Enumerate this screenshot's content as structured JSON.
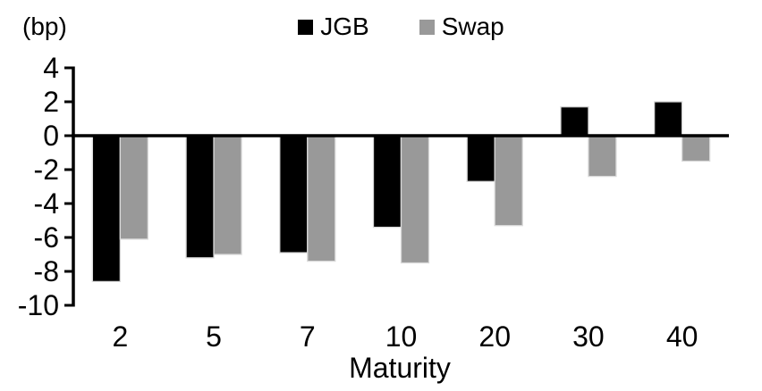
{
  "chart_data": {
    "type": "bar",
    "title": "",
    "unit_label": "(bp)",
    "xlabel": "Maturity",
    "ylabel": "",
    "categories": [
      "2",
      "5",
      "7",
      "10",
      "20",
      "30",
      "40"
    ],
    "series": [
      {
        "name": "JGB",
        "color": "#000000",
        "values": [
          -8.6,
          -7.2,
          -6.9,
          -5.4,
          -2.7,
          1.7,
          2.0
        ]
      },
      {
        "name": "Swap",
        "color": "#999999",
        "values": [
          -6.1,
          -7.0,
          -7.4,
          -7.5,
          -5.3,
          -2.4,
          -1.5
        ]
      }
    ],
    "ylim": [
      -10,
      4
    ],
    "yticks": [
      4,
      2,
      0,
      -2,
      -4,
      -6,
      -8,
      -10
    ],
    "legend_position": "top",
    "grid": false,
    "bar_edge_color": "#d9d9d9",
    "axis_color": "#000000"
  }
}
